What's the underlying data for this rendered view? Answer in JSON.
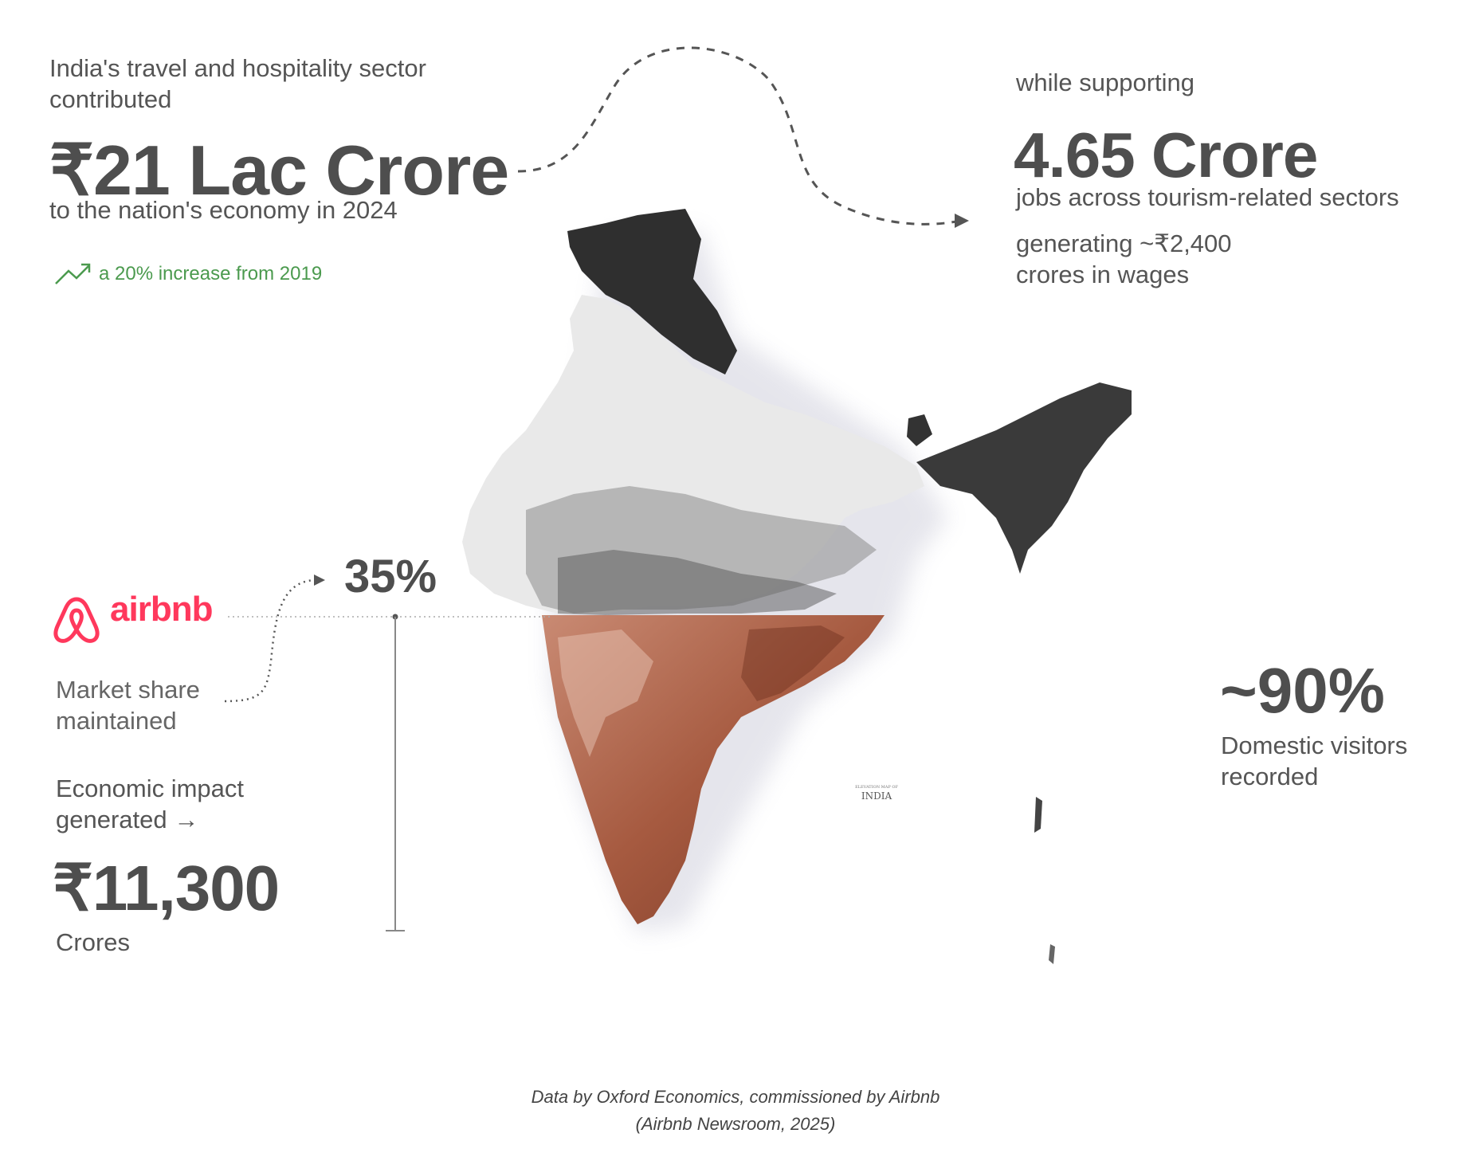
{
  "left_top": {
    "intro": "India's travel and hospitality sector contributed",
    "headline_value": "₹21 Lac Crore",
    "subline": "to the nation's economy in 2024",
    "growth_note": "a 20% increase from 2019"
  },
  "right_top": {
    "lead": "while supporting",
    "headline_value": "4.65 Crore",
    "jobs_text": "jobs across tourism-related sectors",
    "wages_text": "generating ~₹2,400 crores in wages"
  },
  "airbnb": {
    "logo_word": "airbnb",
    "market_share_value": "35%",
    "market_share_label": "Market share maintained",
    "economic_label": "Economic impact generated →",
    "economic_value": "₹11,300",
    "economic_unit": "Crores"
  },
  "right_mid": {
    "domestic_value": "~90%",
    "domestic_label": "Domestic visitors recorded"
  },
  "map_label": {
    "small_top": "ELEVATION MAP OF",
    "name": "INDIA"
  },
  "source": {
    "line1": "Data by Oxford Economics, commissioned by Airbnb",
    "line2": "(Airbnb Newsroom, 2025)"
  },
  "colors": {
    "accent_green": "#4b9a4e",
    "airbnb_red": "#ff385c",
    "map_highlight": "#b4634a"
  }
}
